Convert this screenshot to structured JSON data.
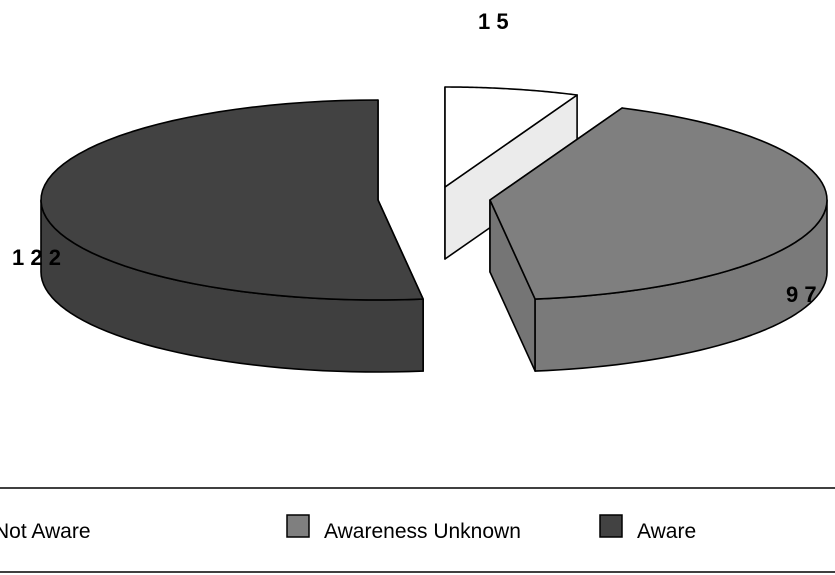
{
  "chart_data": {
    "type": "pie",
    "style": "3d-exploded",
    "categories": [
      "Not Aware",
      "Awareness Unknown",
      "Aware"
    ],
    "values": [
      15,
      97,
      122
    ],
    "data_labels": [
      "1 5",
      "9 7",
      "1 2 2"
    ],
    "colors": [
      "#ffffff",
      "#7f7f7f",
      "#424242"
    ],
    "legend": {
      "position": "bottom",
      "entries": [
        "Not Aware",
        "Awareness Unknown",
        "Aware"
      ]
    },
    "title": "",
    "xlabel": "",
    "ylabel": ""
  }
}
